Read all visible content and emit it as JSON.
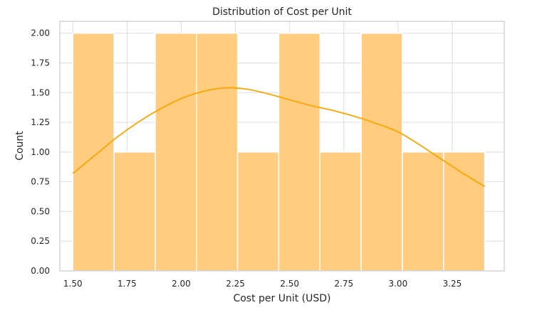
{
  "chart_data": {
    "type": "histogram",
    "title": "Distribution of Cost per Unit",
    "xlabel": "Cost per Unit (USD)",
    "ylabel": "Count",
    "xlim": [
      1.44,
      3.49
    ],
    "ylim": [
      0,
      2.1
    ],
    "xticks": [
      1.5,
      1.75,
      2.0,
      2.25,
      2.5,
      2.75,
      3.0,
      3.25
    ],
    "xtick_labels": [
      "1.50",
      "1.75",
      "2.00",
      "2.25",
      "2.50",
      "2.75",
      "3.00",
      "3.25"
    ],
    "yticks": [
      0,
      0.25,
      0.5,
      0.75,
      1.0,
      1.25,
      1.5,
      1.75,
      2.0
    ],
    "ytick_labels": [
      "0.00",
      "0.25",
      "0.50",
      "0.75",
      "1.00",
      "1.25",
      "1.50",
      "1.75",
      "2.00"
    ],
    "grid": true,
    "bins": [
      {
        "x0": 1.5,
        "x1": 1.69,
        "count": 2
      },
      {
        "x0": 1.69,
        "x1": 1.88,
        "count": 1
      },
      {
        "x0": 1.88,
        "x1": 2.07,
        "count": 2
      },
      {
        "x0": 2.07,
        "x1": 2.26,
        "count": 2
      },
      {
        "x0": 2.26,
        "x1": 2.45,
        "count": 1
      },
      {
        "x0": 2.45,
        "x1": 2.64,
        "count": 2
      },
      {
        "x0": 2.64,
        "x1": 2.83,
        "count": 1
      },
      {
        "x0": 2.83,
        "x1": 3.02,
        "count": 2
      },
      {
        "x0": 3.02,
        "x1": 3.21,
        "count": 1
      },
      {
        "x0": 3.21,
        "x1": 3.4,
        "count": 1
      }
    ],
    "kde": {
      "x": [
        1.5,
        1.6,
        1.7,
        1.8,
        1.9,
        2.0,
        2.1,
        2.2,
        2.3,
        2.4,
        2.5,
        2.6,
        2.7,
        2.8,
        2.9,
        3.0,
        3.1,
        3.2,
        3.3,
        3.4
      ],
      "y": [
        0.82,
        0.97,
        1.12,
        1.25,
        1.36,
        1.45,
        1.51,
        1.54,
        1.53,
        1.49,
        1.44,
        1.39,
        1.35,
        1.3,
        1.24,
        1.17,
        1.06,
        0.94,
        0.82,
        0.71
      ]
    },
    "colors": {
      "bar": "#ffcc80",
      "bar_edge": "#ffffff",
      "kde": "#ffa500",
      "grid": "#dddddd",
      "axis": "#cccccc"
    }
  }
}
